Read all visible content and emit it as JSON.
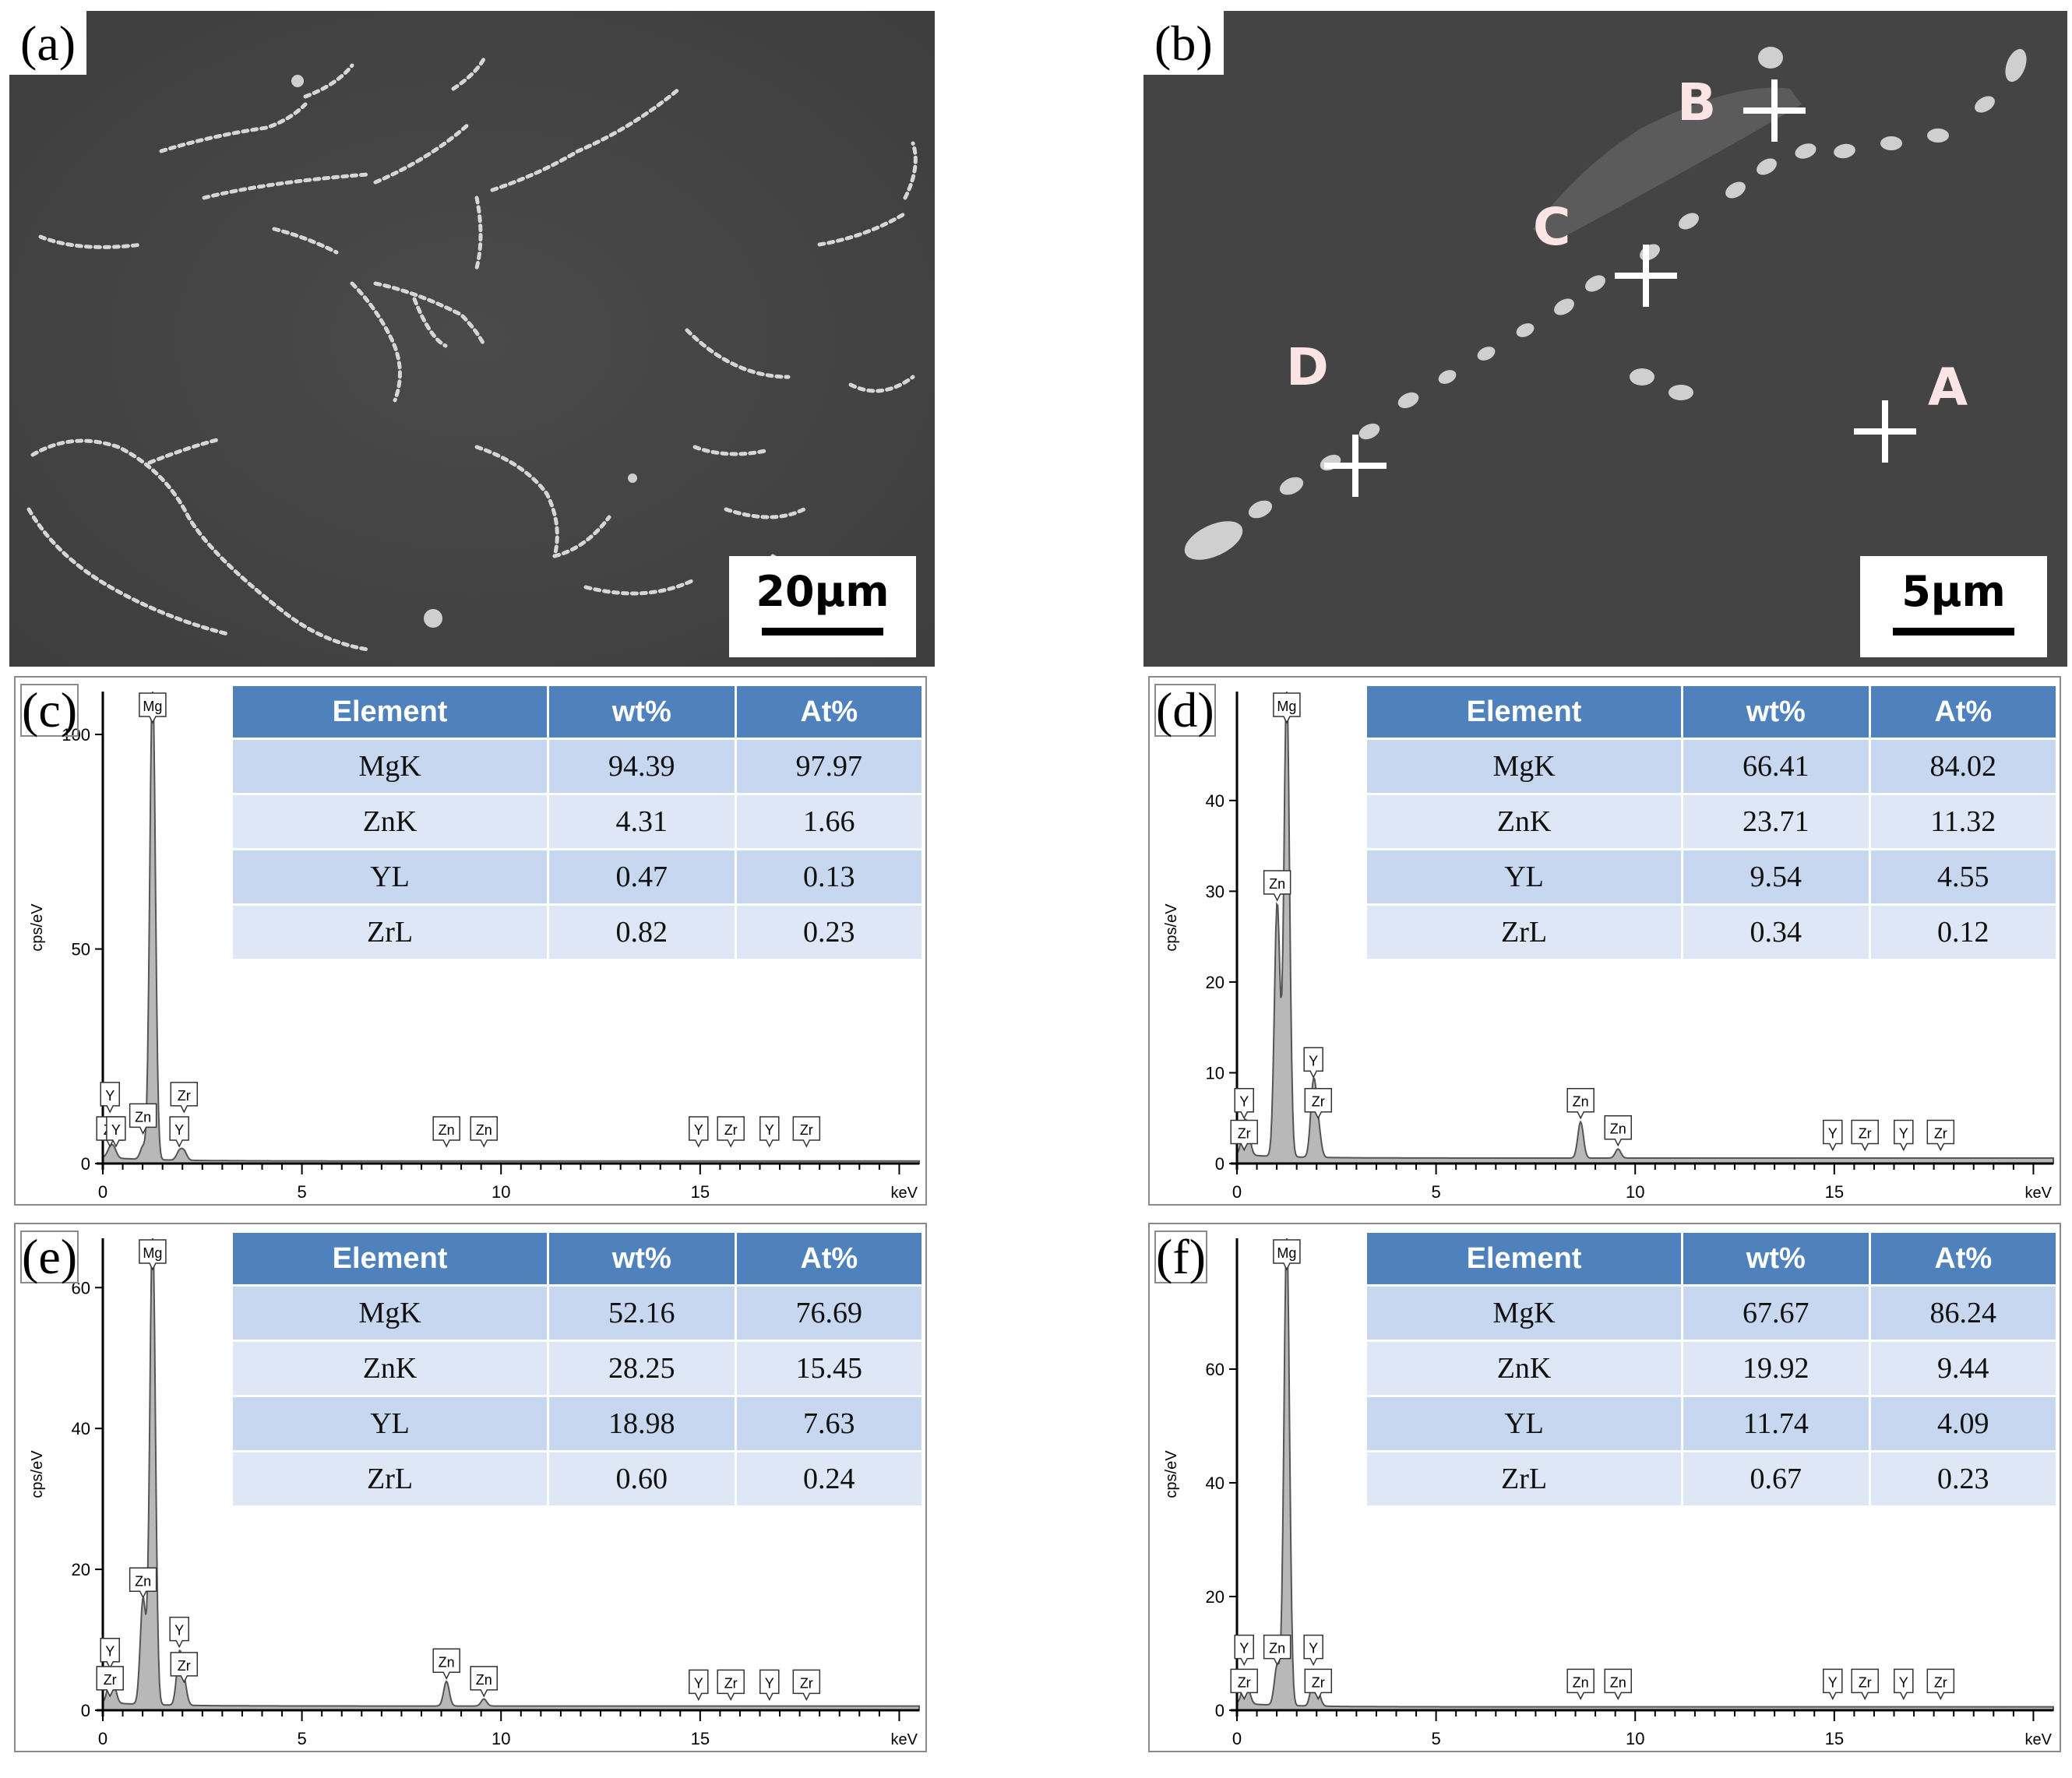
{
  "panels": {
    "a": {
      "label": "(a)",
      "scale_text": "20μm"
    },
    "b": {
      "label": "(b)",
      "scale_text": "5μm",
      "points": [
        "A",
        "B",
        "C",
        "D"
      ]
    }
  },
  "eds": [
    {
      "label": "(c)",
      "ylabel": "cps/eV",
      "xunit": "keV",
      "ylim": [
        0,
        110
      ],
      "yticks": [
        0,
        50,
        100
      ],
      "xticks": [
        0,
        5,
        10,
        15
      ],
      "peaks": [
        {
          "x": 0.18,
          "h": 2
        },
        {
          "x": 0.28,
          "h": 2
        },
        {
          "x": 1.01,
          "h": 3
        },
        {
          "x": 1.25,
          "h": 112
        },
        {
          "x": 1.92,
          "h": 2
        },
        {
          "x": 2.04,
          "h": 2
        }
      ],
      "tags": [
        {
          "t": "Mg",
          "x": 1.25,
          "y": 112
        },
        {
          "t": "Y",
          "x": 0.18,
          "y": 12
        },
        {
          "t": "Zr",
          "x": 0.18,
          "y": 4
        },
        {
          "t": "Y",
          "x": 0.33,
          "y": 4
        },
        {
          "t": "Zn",
          "x": 1.01,
          "y": 7
        },
        {
          "t": "Zr",
          "x": 2.04,
          "y": 12
        },
        {
          "t": "Y",
          "x": 1.92,
          "y": 4
        },
        {
          "t": "Zn",
          "x": 8.63,
          "y": 4
        },
        {
          "t": "Zn",
          "x": 9.57,
          "y": 4
        },
        {
          "t": "Y",
          "x": 14.96,
          "y": 4
        },
        {
          "t": "Zr",
          "x": 15.77,
          "y": 4
        },
        {
          "t": "Y",
          "x": 16.74,
          "y": 4
        },
        {
          "t": "Zr",
          "x": 17.67,
          "y": 4
        }
      ],
      "table": {
        "headers": [
          "Element",
          "wt%",
          "At%"
        ],
        "rows": [
          [
            "MgK",
            "94.39",
            "97.97"
          ],
          [
            "ZnK",
            "4.31",
            "1.66"
          ],
          [
            "YL",
            "0.47",
            "0.13"
          ],
          [
            "ZrL",
            "0.82",
            "0.23"
          ]
        ]
      }
    },
    {
      "label": "(d)",
      "ylabel": "cps/eV",
      "xunit": "keV",
      "ylim": [
        0,
        52
      ],
      "yticks": [
        0,
        10,
        20,
        30,
        40
      ],
      "xticks": [
        0,
        5,
        10,
        15
      ],
      "peaks": [
        {
          "x": 0.18,
          "h": 3
        },
        {
          "x": 0.28,
          "h": 2
        },
        {
          "x": 1.01,
          "h": 28
        },
        {
          "x": 1.25,
          "h": 52
        },
        {
          "x": 1.92,
          "h": 8
        },
        {
          "x": 2.04,
          "h": 3
        },
        {
          "x": 8.63,
          "h": 4
        },
        {
          "x": 9.57,
          "h": 1
        }
      ],
      "tags": [
        {
          "t": "Mg",
          "x": 1.25,
          "y": 52
        },
        {
          "t": "Zn",
          "x": 1.01,
          "y": 29
        },
        {
          "t": "Y",
          "x": 1.92,
          "y": 9.5
        },
        {
          "t": "Zr",
          "x": 2.04,
          "y": 5
        },
        {
          "t": "Y",
          "x": 0.18,
          "y": 5
        },
        {
          "t": "Zr",
          "x": 0.18,
          "y": 1.5
        },
        {
          "t": "Zn",
          "x": 8.63,
          "y": 5
        },
        {
          "t": "Zn",
          "x": 9.57,
          "y": 2
        },
        {
          "t": "Y",
          "x": 14.96,
          "y": 1.5
        },
        {
          "t": "Zr",
          "x": 15.77,
          "y": 1.5
        },
        {
          "t": "Y",
          "x": 16.74,
          "y": 1.5
        },
        {
          "t": "Zr",
          "x": 17.67,
          "y": 1.5
        }
      ],
      "table": {
        "headers": [
          "Element",
          "wt%",
          "At%"
        ],
        "rows": [
          [
            "MgK",
            "66.41",
            "84.02"
          ],
          [
            "ZnK",
            "23.71",
            "11.32"
          ],
          [
            "YL",
            "9.54",
            "4.55"
          ],
          [
            "ZrL",
            "0.34",
            "0.12"
          ]
        ]
      }
    },
    {
      "label": "(e)",
      "ylabel": "cps/eV",
      "xunit": "keV",
      "ylim": [
        0,
        67
      ],
      "yticks": [
        0,
        20,
        40,
        60
      ],
      "xticks": [
        0,
        5,
        10,
        15
      ],
      "peaks": [
        {
          "x": 0.18,
          "h": 3
        },
        {
          "x": 0.28,
          "h": 2
        },
        {
          "x": 1.01,
          "h": 15
        },
        {
          "x": 1.25,
          "h": 68
        },
        {
          "x": 1.92,
          "h": 7
        },
        {
          "x": 2.04,
          "h": 3
        },
        {
          "x": 8.63,
          "h": 3.5
        },
        {
          "x": 9.57,
          "h": 1
        }
      ],
      "tags": [
        {
          "t": "Mg",
          "x": 1.25,
          "y": 67
        },
        {
          "t": "Zn",
          "x": 1.01,
          "y": 16
        },
        {
          "t": "Y",
          "x": 1.92,
          "y": 9
        },
        {
          "t": "Zr",
          "x": 2.04,
          "y": 4
        },
        {
          "t": "Y",
          "x": 0.18,
          "y": 6
        },
        {
          "t": "Zr",
          "x": 0.18,
          "y": 2
        },
        {
          "t": "Zn",
          "x": 8.63,
          "y": 4.5
        },
        {
          "t": "Zn",
          "x": 9.57,
          "y": 2
        },
        {
          "t": "Y",
          "x": 14.96,
          "y": 1.5
        },
        {
          "t": "Zr",
          "x": 15.77,
          "y": 1.5
        },
        {
          "t": "Y",
          "x": 16.74,
          "y": 1.5
        },
        {
          "t": "Zr",
          "x": 17.67,
          "y": 1.5
        }
      ],
      "table": {
        "headers": [
          "Element",
          "wt%",
          "At%"
        ],
        "rows": [
          [
            "MgK",
            "52.16",
            "76.69"
          ],
          [
            "ZnK",
            "28.25",
            "15.45"
          ],
          [
            "YL",
            "18.98",
            "7.63"
          ],
          [
            "ZrL",
            "0.60",
            "0.24"
          ]
        ]
      }
    },
    {
      "label": "(f)",
      "ylabel": "cps/eV",
      "xunit": "keV",
      "ylim": [
        0,
        83
      ],
      "yticks": [
        0,
        20,
        40,
        60
      ],
      "xticks": [
        0,
        5,
        10,
        15
      ],
      "peaks": [
        {
          "x": 0.18,
          "h": 3
        },
        {
          "x": 0.28,
          "h": 2
        },
        {
          "x": 1.01,
          "h": 7
        },
        {
          "x": 1.25,
          "h": 83
        },
        {
          "x": 1.92,
          "h": 5
        },
        {
          "x": 2.04,
          "h": 2
        }
      ],
      "tags": [
        {
          "t": "Mg",
          "x": 1.25,
          "y": 83
        },
        {
          "t": "Zn",
          "x": 1.01,
          "y": 8
        },
        {
          "t": "Y",
          "x": 1.92,
          "y": 8
        },
        {
          "t": "Zr",
          "x": 2.04,
          "y": 2
        },
        {
          "t": "Y",
          "x": 0.18,
          "y": 8
        },
        {
          "t": "Zr",
          "x": 0.18,
          "y": 2
        },
        {
          "t": "Zn",
          "x": 8.63,
          "y": 2
        },
        {
          "t": "Zn",
          "x": 9.57,
          "y": 2
        },
        {
          "t": "Y",
          "x": 14.96,
          "y": 2
        },
        {
          "t": "Zr",
          "x": 15.77,
          "y": 2
        },
        {
          "t": "Y",
          "x": 16.74,
          "y": 2
        },
        {
          "t": "Zr",
          "x": 17.67,
          "y": 2
        }
      ],
      "table": {
        "headers": [
          "Element",
          "wt%",
          "At%"
        ],
        "rows": [
          [
            "MgK",
            "67.67",
            "86.24"
          ],
          [
            "ZnK",
            "19.92",
            "9.44"
          ],
          [
            "YL",
            "11.74",
            "4.09"
          ],
          [
            "ZrL",
            "0.67",
            "0.23"
          ]
        ]
      }
    }
  ],
  "colors": {
    "table_header": "#4f81bd",
    "row_odd": "#c6d7ef",
    "row_even": "#dde7f5",
    "peak_fill": "#b8b8b8",
    "sem_bg": "#454545"
  }
}
